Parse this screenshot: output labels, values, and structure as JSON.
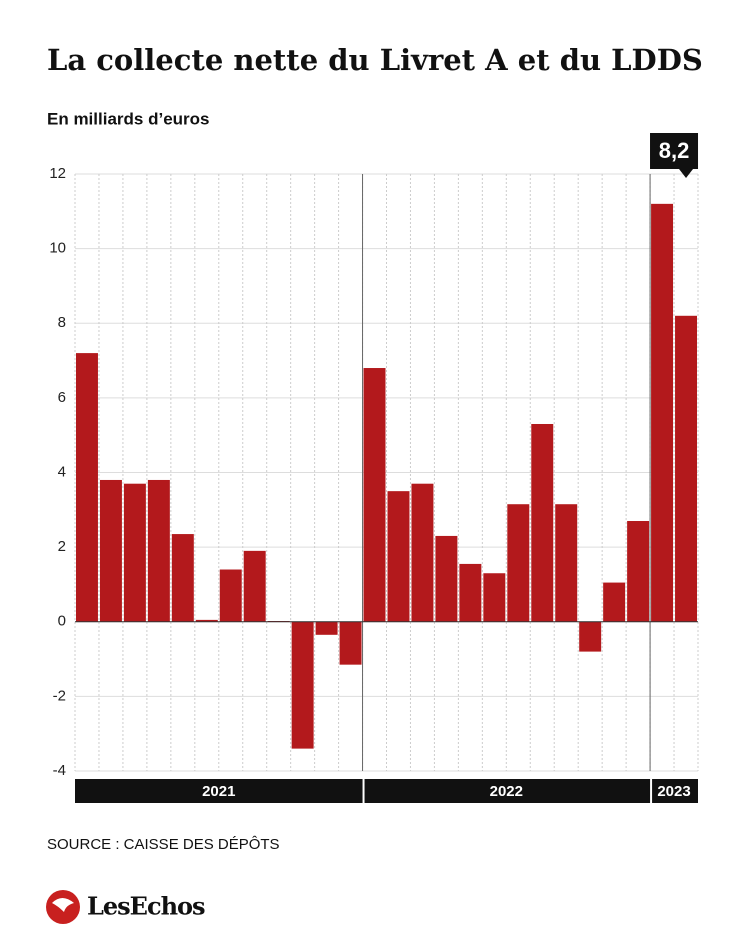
{
  "chart_data": {
    "type": "bar",
    "title": "La collecte nette du Livret A et du LDDS",
    "subtitle": "En milliards d’euros",
    "source": "SOURCE : CAISSE DES DÉPÔTS",
    "brand": "LesEchos",
    "categories": [
      null,
      null,
      null,
      null,
      null,
      null,
      null,
      null,
      null,
      null,
      null,
      null,
      null,
      null,
      null,
      null,
      null,
      null,
      null,
      null,
      null,
      null,
      null,
      null,
      null,
      null
    ],
    "values": [
      7.2,
      3.8,
      3.7,
      3.8,
      2.35,
      0.05,
      1.4,
      1.9,
      0.02,
      -3.4,
      -0.35,
      -1.15,
      6.8,
      3.5,
      3.7,
      2.3,
      1.55,
      1.3,
      3.15,
      5.3,
      3.15,
      -0.8,
      1.05,
      2.7,
      11.2,
      8.2
    ],
    "value_labels": [
      null,
      null,
      null,
      null,
      null,
      null,
      null,
      null,
      null,
      null,
      null,
      null,
      null,
      null,
      null,
      null,
      null,
      null,
      null,
      null,
      null,
      null,
      null,
      null,
      null,
      "8,2"
    ],
    "groups": [
      {
        "label": "2021",
        "size": 12
      },
      {
        "label": "2022",
        "size": 12
      },
      {
        "label": "2023",
        "size": 2
      }
    ],
    "color": "#b3191c",
    "ylim": [
      -4,
      12
    ],
    "yticks": [
      -4,
      -2,
      0,
      2,
      4,
      6,
      8,
      10,
      12
    ],
    "grid": true
  }
}
